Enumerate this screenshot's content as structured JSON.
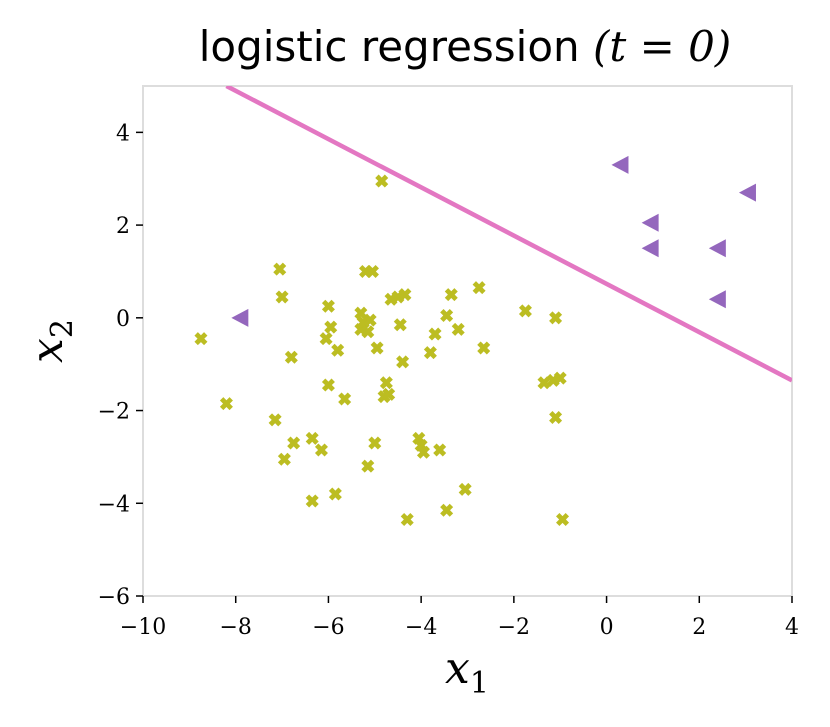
{
  "chart_data": {
    "type": "scatter",
    "title": "logistic regression",
    "title_math": "(t = 0)",
    "xlabel": "x1",
    "ylabel": "x2",
    "xlim": [
      -10,
      4
    ],
    "ylim": [
      -6,
      5
    ],
    "xticks": [
      -10,
      -8,
      -6,
      -4,
      -2,
      0,
      2,
      4
    ],
    "yticks": [
      -6,
      -4,
      -2,
      0,
      2,
      4
    ],
    "xtick_labels": [
      "−10",
      "−8",
      "−6",
      "−4",
      "−2",
      "0",
      "2",
      "4"
    ],
    "ytick_labels": [
      "−6",
      "−4",
      "−2",
      "0",
      "2",
      "4"
    ],
    "grid": false,
    "colors": {
      "class_x": "#bcbd22",
      "class_triangle": "#9467bd",
      "boundary": "#e377c2",
      "frame": "#dddddd"
    },
    "decision_boundary": {
      "points": [
        [
          -8.2,
          5.0
        ],
        [
          4.0,
          -1.35
        ]
      ]
    },
    "series": [
      {
        "marker": "x",
        "points": [
          [
            -8.75,
            -0.45
          ],
          [
            -8.2,
            -1.85
          ],
          [
            -7.15,
            -2.2
          ],
          [
            -7.05,
            1.05
          ],
          [
            -7.0,
            0.45
          ],
          [
            -6.95,
            -3.05
          ],
          [
            -6.8,
            -0.85
          ],
          [
            -6.75,
            -2.7
          ],
          [
            -6.35,
            -2.6
          ],
          [
            -6.35,
            -3.95
          ],
          [
            -6.15,
            -2.85
          ],
          [
            -6.05,
            -0.45
          ],
          [
            -6.0,
            0.25
          ],
          [
            -6.0,
            -1.45
          ],
          [
            -5.95,
            -0.2
          ],
          [
            -5.85,
            -3.8
          ],
          [
            -5.8,
            -0.7
          ],
          [
            -5.65,
            -1.75
          ],
          [
            -5.3,
            0.1
          ],
          [
            -5.3,
            -0.25
          ],
          [
            -5.25,
            -0.1
          ],
          [
            -5.2,
            1.0
          ],
          [
            -5.15,
            -3.2
          ],
          [
            -5.15,
            -0.3
          ],
          [
            -5.1,
            -0.05
          ],
          [
            -5.05,
            1.0
          ],
          [
            -5.0,
            -2.7
          ],
          [
            -4.95,
            -0.65
          ],
          [
            -4.85,
            2.95
          ],
          [
            -4.8,
            -1.7
          ],
          [
            -4.75,
            -1.4
          ],
          [
            -4.7,
            -1.65
          ],
          [
            -4.65,
            0.4
          ],
          [
            -4.5,
            0.45
          ],
          [
            -4.45,
            -0.15
          ],
          [
            -4.4,
            -0.95
          ],
          [
            -4.35,
            0.5
          ],
          [
            -4.3,
            -4.35
          ],
          [
            -4.05,
            -2.6
          ],
          [
            -4.0,
            -2.75
          ],
          [
            -3.95,
            -2.9
          ],
          [
            -3.8,
            -0.75
          ],
          [
            -3.7,
            -0.35
          ],
          [
            -3.6,
            -2.85
          ],
          [
            -3.45,
            0.05
          ],
          [
            -3.45,
            -4.15
          ],
          [
            -3.35,
            0.5
          ],
          [
            -3.2,
            -0.25
          ],
          [
            -3.05,
            -3.7
          ],
          [
            -2.75,
            0.65
          ],
          [
            -2.65,
            -0.65
          ],
          [
            -1.75,
            0.15
          ],
          [
            -1.35,
            -1.4
          ],
          [
            -1.15,
            -1.35
          ],
          [
            -1.1,
            0.0
          ],
          [
            -1.1,
            -2.15
          ],
          [
            -1.0,
            -1.3
          ],
          [
            -0.95,
            -4.35
          ]
        ]
      },
      {
        "marker": "triangle-left",
        "points": [
          [
            -7.9,
            0.0
          ],
          [
            0.3,
            3.3
          ],
          [
            0.95,
            2.05
          ],
          [
            0.95,
            1.5
          ],
          [
            2.4,
            1.5
          ],
          [
            2.4,
            0.4
          ],
          [
            3.05,
            2.7
          ]
        ]
      }
    ]
  }
}
